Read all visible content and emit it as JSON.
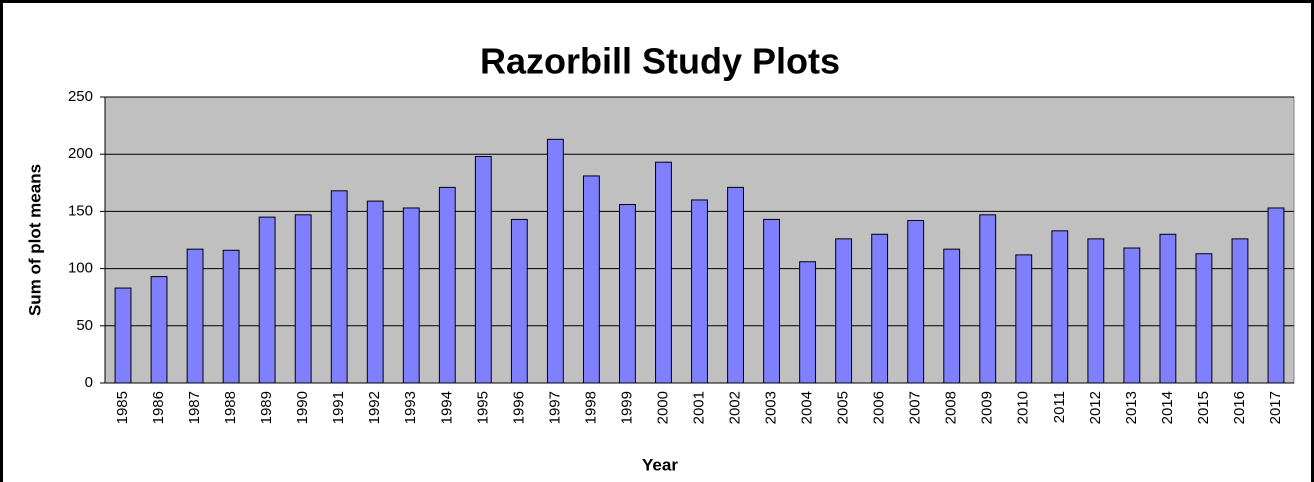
{
  "chart_data": {
    "type": "bar",
    "title": "Razorbill Study Plots",
    "x_label": "Year",
    "y_label": "Sum of plot means",
    "categories": [
      "1985",
      "1986",
      "1987",
      "1988",
      "1989",
      "1990",
      "1991",
      "1992",
      "1993",
      "1994",
      "1995",
      "1996",
      "1997",
      "1998",
      "1999",
      "2000",
      "2001",
      "2002",
      "2003",
      "2004",
      "2005",
      "2006",
      "2007",
      "2008",
      "2009",
      "2010",
      "2011",
      "2012",
      "2013",
      "2014",
      "2015",
      "2016",
      "2017"
    ],
    "values": [
      83,
      93,
      117,
      116,
      145,
      147,
      168,
      159,
      153,
      171,
      198,
      143,
      213,
      181,
      156,
      193,
      160,
      171,
      143,
      106,
      126,
      130,
      142,
      117,
      147,
      112,
      133,
      126,
      118,
      130,
      113,
      126,
      153
    ],
    "color": "#8080ff",
    "ylim": [
      0,
      250
    ],
    "yticks": [
      0,
      50,
      100,
      150,
      200,
      250
    ],
    "grid": true
  }
}
